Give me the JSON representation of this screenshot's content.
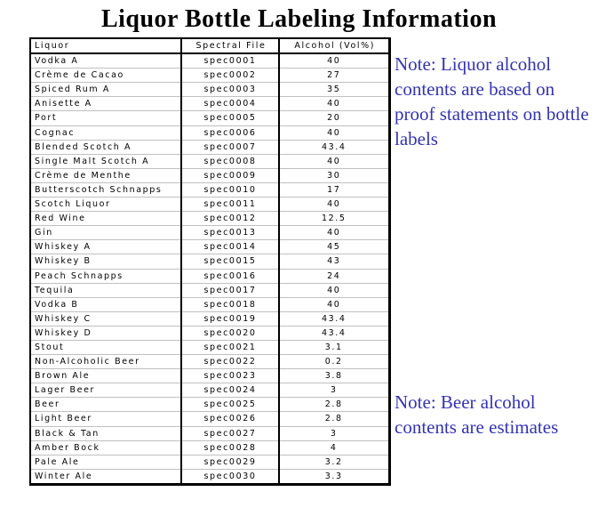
{
  "title": "Liquor Bottle Labeling Information",
  "colors": {
    "note_text": "#3333b3",
    "table_border": "#000000",
    "row_divider": "#c0c0c0",
    "background": "#ffffff"
  },
  "notes": {
    "liquor": "Note: Liquor alcohol contents are based on proof statements on bottle labels",
    "beer": "Note: Beer alcohol contents are estimates"
  },
  "table": {
    "columns": [
      "Liquor",
      "Spectral File",
      "Alcohol (Vol%)"
    ],
    "rows": [
      [
        "Vodka A",
        "spec0001",
        "40"
      ],
      [
        "Crème de Cacao",
        "spec0002",
        "27"
      ],
      [
        "Spiced Rum  A",
        "spec0003",
        "35"
      ],
      [
        "Anisette A",
        "spec0004",
        "40"
      ],
      [
        "Port",
        "spec0005",
        "20"
      ],
      [
        "Cognac",
        "spec0006",
        "40"
      ],
      [
        "Blended Scotch A",
        "spec0007",
        "43.4"
      ],
      [
        "Single Malt Scotch A",
        "spec0008",
        "40"
      ],
      [
        "Crème de Menthe",
        "spec0009",
        "30"
      ],
      [
        "Butterscotch Schnapps",
        "spec0010",
        "17"
      ],
      [
        "Scotch Liquor",
        "spec0011",
        "40"
      ],
      [
        "Red Wine",
        "spec0012",
        "12.5"
      ],
      [
        "Gin",
        "spec0013",
        "40"
      ],
      [
        "Whiskey A",
        "spec0014",
        "45"
      ],
      [
        "Whiskey B",
        "spec0015",
        "43"
      ],
      [
        "Peach Schnapps",
        "spec0016",
        "24"
      ],
      [
        "Tequila",
        "spec0017",
        "40"
      ],
      [
        "Vodka B",
        "spec0018",
        "40"
      ],
      [
        "Whiskey C",
        "spec0019",
        "43.4"
      ],
      [
        "Whiskey D",
        "spec0020",
        "43.4"
      ],
      [
        "Stout",
        "spec0021",
        "3.1"
      ],
      [
        "Non-Alcoholic Beer",
        "spec0022",
        "0.2"
      ],
      [
        "Brown Ale",
        "spec0023",
        "3.8"
      ],
      [
        "Lager Beer",
        "spec0024",
        "3"
      ],
      [
        "Beer",
        "spec0025",
        "2.8"
      ],
      [
        "Light Beer",
        "spec0026",
        "2.8"
      ],
      [
        "Black & Tan",
        "spec0027",
        "3"
      ],
      [
        "Amber Bock",
        "spec0028",
        "4"
      ],
      [
        "Pale Ale",
        "spec0029",
        "3.2"
      ],
      [
        "Winter Ale",
        "spec0030",
        "3.3"
      ]
    ]
  }
}
